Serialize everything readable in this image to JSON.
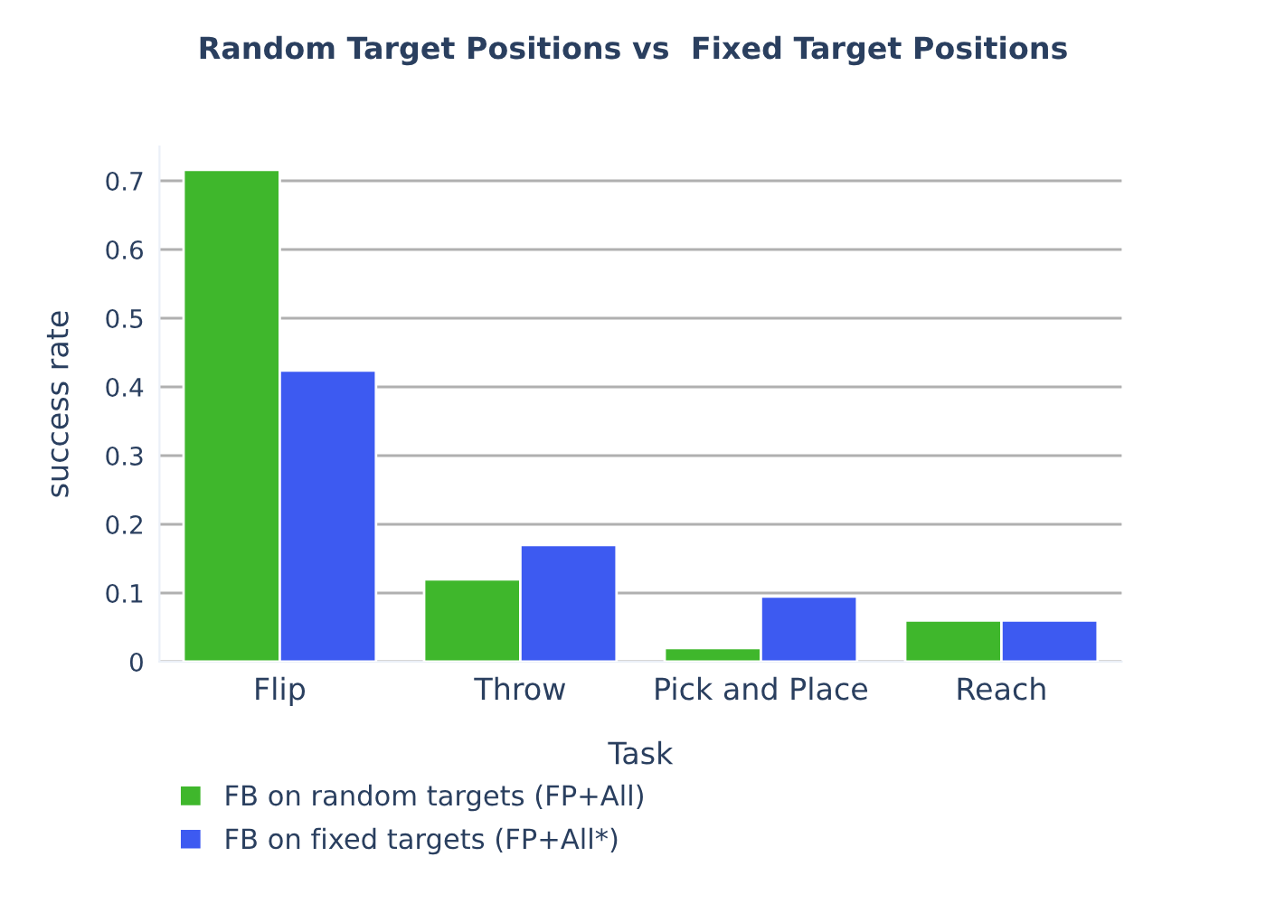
{
  "chart_data": {
    "type": "bar",
    "title": "Random Target Positions vs  Fixed Target Positions",
    "xlabel": "Task",
    "ylabel": "success rate",
    "categories": [
      "Flip",
      "Throw",
      "Pick and Place",
      "Reach"
    ],
    "series": [
      {
        "name": "FB on random targets (FP+All)",
        "color": "#3fb72c",
        "values": [
          0.716,
          0.12,
          0.02,
          0.06
        ]
      },
      {
        "name": "FB on fixed targets (FP+All*)",
        "color": "#3d5af1",
        "values": [
          0.424,
          0.17,
          0.095,
          0.06
        ]
      }
    ],
    "ylim": [
      0,
      0.75
    ],
    "yticks": [
      0,
      0.1,
      0.2,
      0.3,
      0.4,
      0.5,
      0.6,
      0.7
    ],
    "grid": "y",
    "legend": "bottom left"
  }
}
